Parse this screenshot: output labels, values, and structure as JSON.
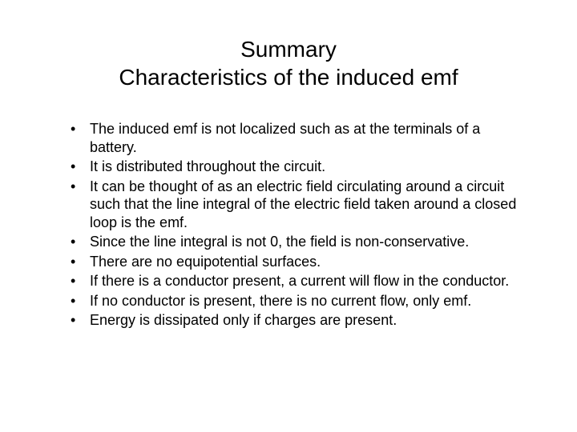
{
  "title_line1": "Summary",
  "title_line2": "Characteristics of the induced emf",
  "bullets": [
    "The induced emf is not localized such as at the terminals of a battery.",
    "It is distributed throughout the circuit.",
    "It can be thought of as an electric field circulating around a circuit such that the line integral of the electric field taken around a closed loop is the emf.",
    "Since the line integral is not 0, the field is non-conservative.",
    "There are no equipotential surfaces.",
    "If there is a conductor present, a current will flow in the conductor.",
    "If no conductor is present, there is no current flow, only emf.",
    "Energy is dissipated only if charges are present."
  ],
  "colors": {
    "background": "#ffffff",
    "text": "#000000"
  },
  "typography": {
    "title_fontsize": 28,
    "body_fontsize": 18,
    "font_family": "Arial"
  }
}
